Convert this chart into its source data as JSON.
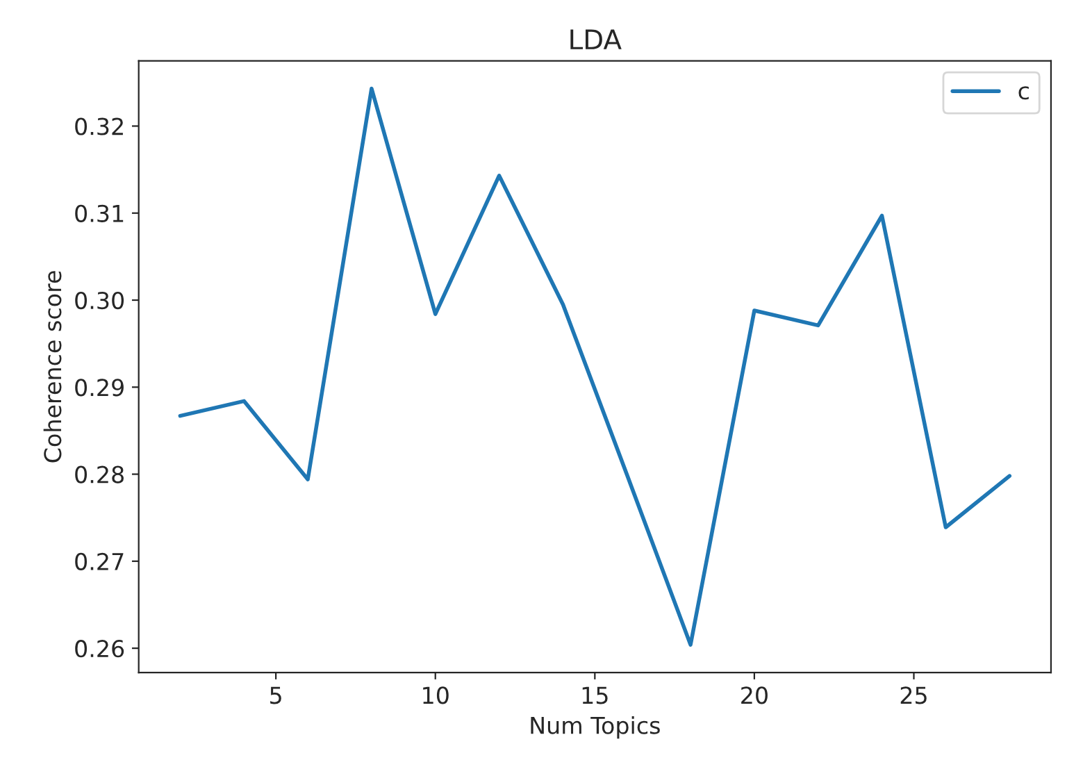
{
  "chart_data": {
    "type": "line",
    "title": "LDA",
    "xlabel": "Num Topics",
    "ylabel": "Coherence score",
    "x": [
      2,
      4,
      6,
      8,
      10,
      12,
      14,
      16,
      18,
      20,
      22,
      24,
      26,
      28
    ],
    "series": [
      {
        "name": "c",
        "color": "#1f77b4",
        "values": [
          0.2867,
          0.2884,
          0.2794,
          0.3243,
          0.2984,
          0.3143,
          0.2995,
          0.28,
          0.2604,
          0.2988,
          0.2971,
          0.3097,
          0.2739,
          0.2798
        ]
      }
    ],
    "xlim": [
      0.7,
      29.3
    ],
    "ylim": [
      0.2572,
      0.3275
    ],
    "xticks": [
      5,
      10,
      15,
      20,
      25
    ],
    "yticks": [
      {
        "value": 0.26,
        "label": "0.26"
      },
      {
        "value": 0.27,
        "label": "0.27"
      },
      {
        "value": 0.28,
        "label": "0.28"
      },
      {
        "value": 0.29,
        "label": "0.29"
      },
      {
        "value": 0.3,
        "label": "0.30"
      },
      {
        "value": 0.31,
        "label": "0.31"
      },
      {
        "value": 0.32,
        "label": "0.32"
      }
    ],
    "legend": "top right",
    "grid": false
  }
}
